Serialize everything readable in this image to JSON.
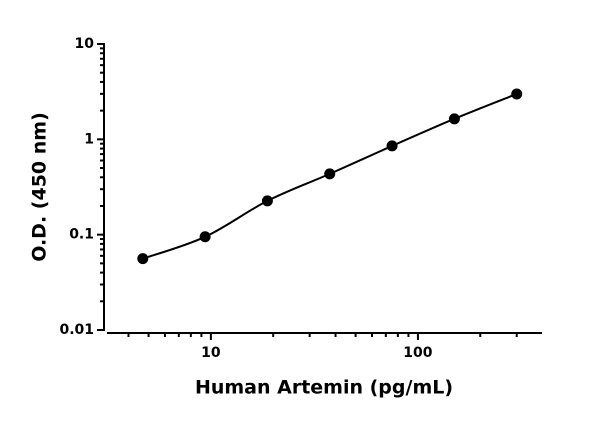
{
  "chart_data": {
    "type": "scatter",
    "x_label": "Human Artemin (pg/mL)",
    "y_label": "O.D. (450 nm)",
    "log_x": true,
    "log_y": true,
    "series": [
      {
        "color": "#000000",
        "line": true,
        "x": [
          4.69,
          9.38,
          18.75,
          37.5,
          75,
          150,
          300
        ],
        "values": [
          0.056,
          0.095,
          0.226,
          0.434,
          0.853,
          1.64,
          2.99
        ]
      }
    ],
    "xlim": [
      3.15,
      393
    ],
    "ylim": [
      0.01,
      10
    ],
    "xticks": [
      10,
      100
    ],
    "yticks": [
      0.01,
      0.1,
      1,
      10
    ],
    "xminorticks": [
      4,
      5,
      6,
      7,
      8,
      9,
      20,
      30,
      40,
      50,
      60,
      70,
      80,
      90,
      200,
      300
    ],
    "yminorticks": [
      0.02,
      0.03,
      0.04,
      0.05,
      0.06,
      0.07,
      0.08,
      0.09,
      0.2,
      0.3,
      0.4,
      0.5,
      0.6,
      0.7,
      0.8,
      0.9,
      2,
      3,
      4,
      5,
      6,
      7,
      8,
      9
    ]
  }
}
